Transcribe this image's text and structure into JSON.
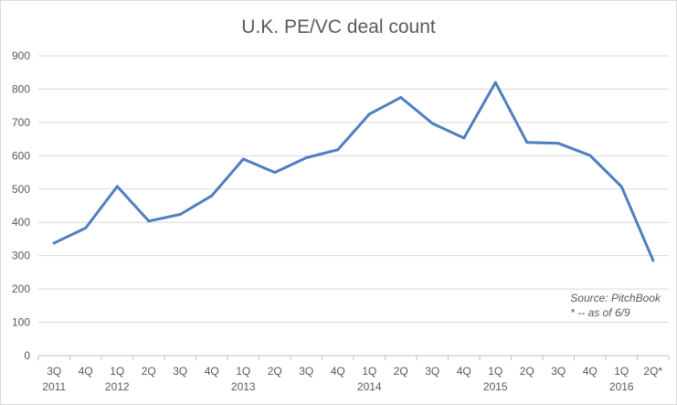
{
  "chart_data": {
    "type": "line",
    "title": "U.K. PE/VC deal count",
    "xlabel": "",
    "ylabel": "",
    "ylim": [
      0,
      900
    ],
    "yticks": [
      0,
      100,
      200,
      300,
      400,
      500,
      600,
      700,
      800,
      900
    ],
    "grid": true,
    "legend": "none",
    "categories": [
      "3Q",
      "4Q",
      "1Q",
      "2Q",
      "3Q",
      "4Q",
      "1Q",
      "2Q",
      "3Q",
      "4Q",
      "1Q",
      "2Q",
      "3Q",
      "4Q",
      "1Q",
      "2Q",
      "3Q",
      "4Q",
      "1Q",
      "2Q*"
    ],
    "year_labels": [
      "2011",
      "",
      "2012",
      "",
      "",
      "",
      "2013",
      "",
      "",
      "",
      "2014",
      "",
      "",
      "",
      "2015",
      "",
      "",
      "",
      "2016",
      ""
    ],
    "series": [
      {
        "values": [
          338,
          383,
          508,
          404,
          424,
          480,
          590,
          550,
          594,
          618,
          725,
          775,
          697,
          653,
          820,
          640,
          637,
          601,
          507,
          286
        ],
        "color": "#4e7fc0"
      }
    ],
    "annotations": [
      "Source: PitchBook",
      "* -- as of 6/9"
    ]
  }
}
